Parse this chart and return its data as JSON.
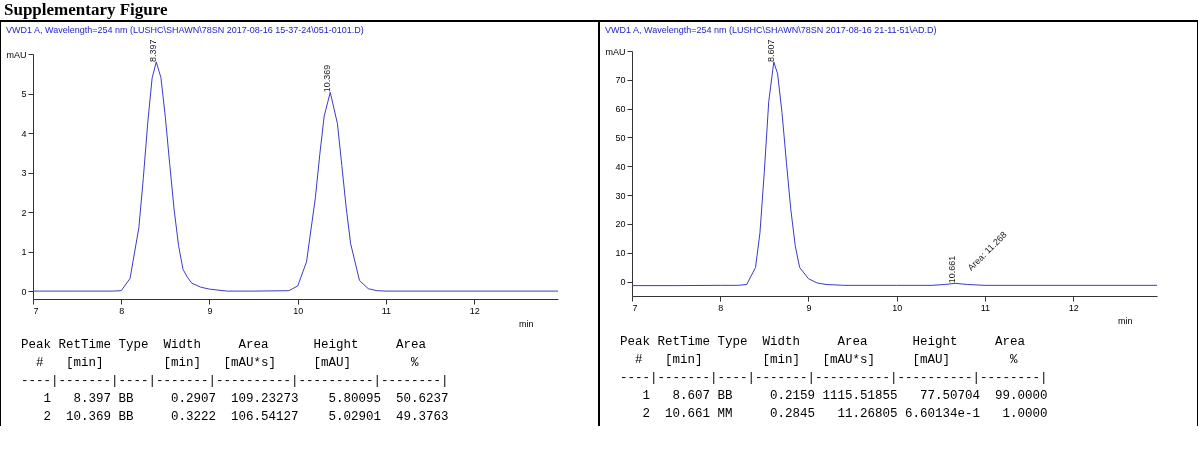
{
  "chart_data": [
    {
      "type": "line",
      "title": "Supplementary Figure",
      "subtitle": "VWD1 A, Wavelength=254 nm (LUSHC\\SHAWN\\78SN 2017-08-16 15-37-24\\051-0101.D)",
      "xlabel": "min",
      "xlim": [
        7,
        12.95
      ],
      "xticks": [
        7,
        8,
        9,
        10,
        11,
        12
      ],
      "ylim": [
        -0.2,
        6
      ],
      "yticks": [
        0,
        1,
        2,
        3,
        4,
        5,
        {
          "value": 6,
          "label": "mAU"
        }
      ],
      "grid": false,
      "legend": false,
      "marker": "none",
      "series": [
        {
          "color": "#3b3bc8",
          "x": [
            7,
            7.5,
            7.9,
            8.0,
            8.1,
            8.2,
            8.25,
            8.3,
            8.35,
            8.397,
            8.45,
            8.5,
            8.55,
            8.6,
            8.65,
            8.7,
            8.75,
            8.8,
            8.9,
            9.0,
            9.2,
            9.5,
            9.9,
            10.0,
            10.1,
            10.2,
            10.25,
            10.3,
            10.369,
            10.45,
            10.5,
            10.55,
            10.6,
            10.7,
            10.8,
            10.9,
            11.0,
            12.95
          ],
          "values": [
            0,
            0,
            0,
            0.01,
            0.32,
            1.61,
            2.85,
            4.25,
            5.39,
            5.8,
            5.4,
            4.4,
            3.2,
            2.05,
            1.15,
            0.55,
            0.35,
            0.2,
            0.1,
            0.05,
            0,
            0,
            0.01,
            0.13,
            0.74,
            2.36,
            3.45,
            4.43,
            5.03,
            4.24,
            3.18,
            2.1,
            1.2,
            0.27,
            0.06,
            0.01,
            0,
            0
          ]
        }
      ],
      "annotations": [
        {
          "text": "8.397",
          "x": 8.397,
          "y": 5.8
        },
        {
          "text": "10.369",
          "x": 10.369,
          "y": 5.03
        },
        "Peak RetTime Type  Width     Area      Height     Area  ",
        "  #   [min]        [min]   [mAU*s]     [mAU]        %   ",
        "----|-------|----|-------|----------|----------|--------|",
        "   1   8.397 BB     0.2907  109.23273    5.80095  50.6237",
        "   2  10.369 BB     0.3222  106.54127    5.02901  49.3763"
      ]
    },
    {
      "type": "line",
      "subtitle": "VWD1 A, Wavelength=254 nm (LUSHC\\SHAWN\\78SN 2017-08-16 21-11-51\\AD.D)",
      "xlabel": "min",
      "xlim": [
        7,
        12.95
      ],
      "xticks": [
        7,
        8,
        9,
        10,
        11,
        12
      ],
      "ylim": [
        -5,
        80
      ],
      "yticks": [
        0,
        10,
        20,
        30,
        40,
        50,
        60,
        70,
        {
          "value": 80,
          "label": "mAU"
        }
      ],
      "grid": false,
      "legend": false,
      "marker": "none",
      "series": [
        {
          "color": "#3b3bc8",
          "x": [
            7,
            7.5,
            8.0,
            8.2,
            8.3,
            8.4,
            8.45,
            8.5,
            8.55,
            8.607,
            8.65,
            8.7,
            8.75,
            8.8,
            8.85,
            8.9,
            9.0,
            9.1,
            9.2,
            9.4,
            10.0,
            10.4,
            10.55,
            10.661,
            10.8,
            11.0,
            12.95
          ],
          "values": [
            -1.4,
            -1.4,
            -1.3,
            -1.3,
            -1.0,
            4.9,
            16.9,
            38.3,
            62.5,
            76.2,
            72.1,
            58.6,
            41.4,
            25,
            12.4,
            4.9,
            1.0,
            -0.5,
            -1.0,
            -1.3,
            -1.3,
            -1.3,
            -1.0,
            -0.6,
            -1.0,
            -1.3,
            -1.3
          ]
        }
      ],
      "annotations": [
        {
          "text": "8.607",
          "x": 8.607,
          "y": 76.2
        },
        {
          "text": "10.661",
          "x": 10.661,
          "y": -0.6
        },
        {
          "text": "Area: 11.268",
          "x": 10.661,
          "y": -0.6
        },
        "Peak RetTime Type  Width     Area      Height     Area  ",
        "  #   [min]        [min]   [mAU*s]     [mAU]        %   ",
        "----|-------|----|-------|----------|----------|--------|",
        "   1   8.607 BB     0.2159 1115.51855   77.50704  99.0000",
        "   2  10.661 MM     0.2845   11.26805 6.60134e-1   1.0000"
      ]
    }
  ]
}
